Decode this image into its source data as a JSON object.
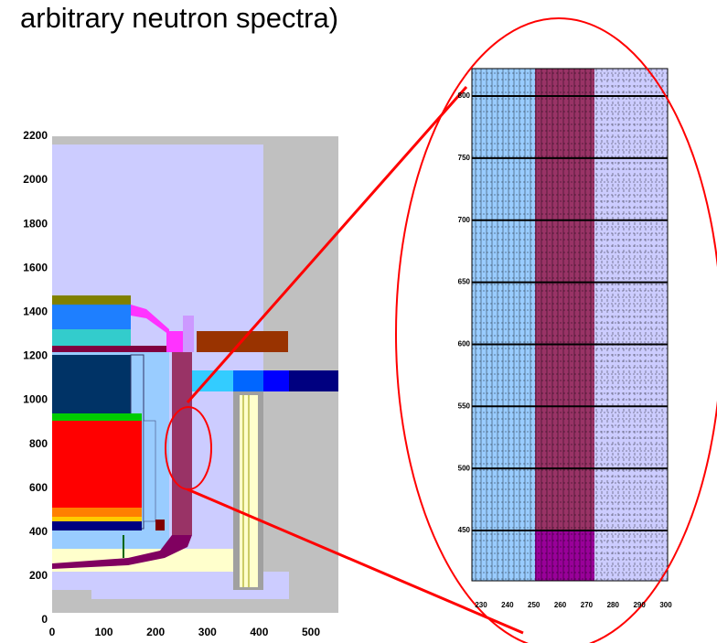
{
  "title": "arbitrary neutron spectra)",
  "left_plot": {
    "xticks": [
      0,
      100,
      200,
      300,
      400,
      500
    ],
    "yticks": [
      0,
      200,
      400,
      600,
      800,
      1000,
      1200,
      1400,
      1600,
      1800,
      2000,
      2200
    ]
  },
  "right_plot": {
    "xticks": [
      230,
      240,
      250,
      260,
      270,
      280,
      290,
      300
    ],
    "yticks": [
      450,
      500,
      550,
      600,
      650,
      700,
      750,
      800
    ]
  }
}
